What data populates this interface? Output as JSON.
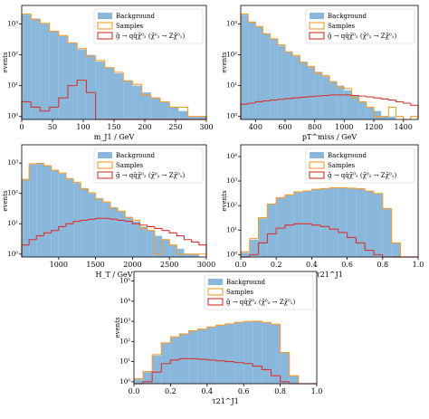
{
  "chart_data": [
    {
      "type": "histogram",
      "xlabel": "m_J1 / GeV",
      "ylabel": "events",
      "log_y": true,
      "legend": "upper right",
      "bins": [
        0,
        15,
        30,
        45,
        60,
        75,
        90,
        105,
        120,
        135,
        150,
        165,
        180,
        195,
        210,
        225,
        240,
        255,
        270,
        285,
        300
      ],
      "xlim": [
        0,
        300
      ],
      "xticks": [
        0,
        50,
        100,
        150,
        200,
        250,
        300
      ],
      "ylim": [
        0.8,
        4000
      ],
      "yticks": [
        {
          "value": 1,
          "label": "10⁰"
        },
        {
          "value": 10,
          "label": "10¹"
        },
        {
          "value": 100,
          "label": "10²"
        },
        {
          "value": 1000,
          "label": "10³"
        }
      ],
      "series": [
        {
          "name": "Background",
          "style": "fill",
          "color": "#8ab8dd",
          "values": [
            2000,
            1500,
            1000,
            600,
            400,
            250,
            150,
            100,
            60,
            40,
            25,
            15,
            10,
            6,
            4,
            3,
            2,
            1.5,
            1,
            1
          ]
        },
        {
          "name": "Samples",
          "style": "step",
          "color": "#f29b2c",
          "values": [
            2100,
            1400,
            1050,
            580,
            420,
            240,
            160,
            90,
            65,
            38,
            27,
            14,
            11,
            5,
            4,
            3,
            2,
            2,
            1,
            1
          ]
        },
        {
          "name": "g̃ → qq̄χ̃⁰₂ (χ̃⁰₂ → Zχ̃⁰₁)",
          "style": "step",
          "color": "#d9322b",
          "values": [
            3,
            2,
            1.5,
            2,
            4,
            10,
            15,
            6,
            0,
            0,
            0,
            0,
            0,
            0,
            0,
            0,
            0,
            0,
            0,
            0
          ]
        }
      ]
    },
    {
      "type": "histogram",
      "xlabel": "pT^miss / GeV",
      "ylabel": "events",
      "log_y": true,
      "legend": "upper right",
      "bins": [
        300,
        350,
        400,
        450,
        500,
        550,
        600,
        650,
        700,
        750,
        800,
        850,
        900,
        950,
        1000,
        1050,
        1100,
        1150,
        1200,
        1250,
        1300,
        1350,
        1400,
        1450,
        1500
      ],
      "xlim": [
        300,
        1500
      ],
      "xticks": [
        400,
        600,
        800,
        1000,
        1200,
        1400
      ],
      "ylim": [
        0.8,
        4000
      ],
      "yticks": [
        {
          "value": 1,
          "label": "10⁰"
        },
        {
          "value": 10,
          "label": "10¹"
        },
        {
          "value": 100,
          "label": "10²"
        },
        {
          "value": 1000,
          "label": "10³"
        }
      ],
      "series": [
        {
          "name": "Background",
          "style": "fill",
          "color": "#8ab8dd",
          "values": [
            2000,
            1200,
            800,
            500,
            320,
            200,
            130,
            90,
            60,
            40,
            28,
            20,
            14,
            10,
            7,
            5,
            3,
            2,
            1.5,
            1,
            1,
            0,
            0,
            0
          ]
        },
        {
          "name": "Samples",
          "style": "step",
          "color": "#f29b2c",
          "values": [
            2100,
            1150,
            820,
            480,
            330,
            210,
            120,
            95,
            55,
            42,
            26,
            21,
            13,
            9,
            8,
            4,
            3,
            2,
            1,
            1,
            2,
            1,
            0,
            1
          ]
        },
        {
          "name": "g̃ → qq̄χ̃⁰₂ (χ̃⁰₂ → Zχ̃⁰₁)",
          "style": "step",
          "color": "#d9322b",
          "values": [
            2.5,
            2.7,
            3,
            3.2,
            3.4,
            3.6,
            3.8,
            4,
            4.2,
            4.4,
            4.6,
            4.8,
            5,
            5,
            5,
            4.8,
            4.6,
            4.3,
            4,
            3.7,
            3.4,
            3,
            2.7,
            2.3
          ]
        }
      ]
    },
    {
      "type": "histogram",
      "xlabel": "H_T / GeV",
      "ylabel": "events",
      "log_y": true,
      "legend": "upper right",
      "bins": [
        500,
        600,
        700,
        800,
        900,
        1000,
        1100,
        1200,
        1300,
        1400,
        1500,
        1600,
        1700,
        1800,
        1900,
        2000,
        2100,
        2200,
        2300,
        2400,
        2500,
        2600,
        2700,
        2800,
        2900,
        3000
      ],
      "xlim": [
        500,
        3000
      ],
      "xticks": [
        1000,
        1500,
        2000,
        2500,
        3000
      ],
      "ylim": [
        0.8,
        4000
      ],
      "yticks": [
        {
          "value": 1,
          "label": "10⁰"
        },
        {
          "value": 10,
          "label": "10¹"
        },
        {
          "value": 100,
          "label": "10²"
        },
        {
          "value": 1000,
          "label": "10³"
        }
      ],
      "series": [
        {
          "name": "Background",
          "style": "fill",
          "color": "#8ab8dd",
          "values": [
            300,
            900,
            1000,
            800,
            600,
            450,
            320,
            220,
            150,
            100,
            70,
            50,
            35,
            25,
            17,
            12,
            8,
            6,
            4,
            3,
            2,
            1.5,
            1,
            1,
            0
          ]
        },
        {
          "name": "Samples",
          "style": "step",
          "color": "#f29b2c",
          "values": [
            280,
            950,
            980,
            820,
            580,
            470,
            300,
            230,
            140,
            105,
            65,
            52,
            33,
            26,
            16,
            13,
            7,
            6,
            1,
            3,
            2,
            1,
            1,
            1,
            1
          ]
        },
        {
          "name": "g̃ → qq̄χ̃⁰₂ (χ̃⁰₂ → Zχ̃⁰₁)",
          "style": "step",
          "color": "#d9322b",
          "values": [
            2,
            3,
            4,
            5,
            6,
            8,
            10,
            12,
            13,
            14,
            15,
            15,
            14,
            13,
            12,
            10,
            9,
            8,
            7,
            6,
            5,
            4,
            3,
            2.5,
            2
          ]
        }
      ]
    },
    {
      "type": "histogram",
      "xlabel": "τ21^J1",
      "ylabel": "events",
      "log_y": true,
      "legend": "upper right",
      "bins": [
        0,
        0.05,
        0.1,
        0.15,
        0.2,
        0.25,
        0.3,
        0.35,
        0.4,
        0.45,
        0.5,
        0.55,
        0.6,
        0.65,
        0.7,
        0.75,
        0.8,
        0.85,
        0.9,
        0.95,
        1
      ],
      "xlim": [
        0,
        1
      ],
      "xticks": [
        {
          "value": 0,
          "label": "0.0"
        },
        0.2,
        0.4,
        0.6,
        0.8,
        {
          "value": 1,
          "label": "1.0"
        }
      ],
      "ylim": [
        0.8,
        30000
      ],
      "yticks": [
        {
          "value": 1,
          "label": "10⁰"
        },
        {
          "value": 10,
          "label": "10¹"
        },
        {
          "value": 100,
          "label": "10²"
        },
        {
          "value": 1000,
          "label": "10³"
        },
        {
          "value": 10000,
          "label": "10⁴"
        }
      ],
      "series": [
        {
          "name": "Background",
          "style": "fill",
          "color": "#8ab8dd",
          "values": [
            1.2,
            4,
            30,
            120,
            200,
            280,
            350,
            400,
            450,
            500,
            520,
            540,
            520,
            480,
            400,
            300,
            80,
            3,
            0,
            0
          ]
        },
        {
          "name": "Samples",
          "style": "step",
          "color": "#f29b2c",
          "values": [
            1.3,
            4.5,
            32,
            115,
            210,
            270,
            360,
            390,
            460,
            490,
            530,
            530,
            510,
            490,
            390,
            310,
            75,
            3,
            0,
            0
          ]
        },
        {
          "name": "g̃ → qq̄χ̃⁰₂ (χ̃⁰₂ → Zχ̃⁰₁)",
          "style": "step",
          "color": "#d9322b",
          "values": [
            0,
            1,
            3,
            7,
            12,
            16,
            18,
            18,
            16,
            14,
            11,
            8,
            5,
            3,
            1.5,
            1,
            0,
            0,
            0,
            0
          ]
        }
      ]
    },
    {
      "type": "histogram",
      "xlabel": "τ21^J1",
      "ylabel": "events",
      "log_y": true,
      "legend": "upper right",
      "bins": [
        0,
        0.05,
        0.1,
        0.15,
        0.2,
        0.25,
        0.3,
        0.35,
        0.4,
        0.45,
        0.5,
        0.55,
        0.6,
        0.65,
        0.7,
        0.75,
        0.8,
        0.85,
        0.9,
        0.95,
        1
      ],
      "xlim": [
        0,
        1
      ],
      "xticks": [
        {
          "value": 0,
          "label": "0.0"
        },
        0.2,
        0.4,
        0.6,
        0.8,
        {
          "value": 1,
          "label": "1.0"
        }
      ],
      "ylim": [
        0.8,
        300000
      ],
      "yticks": [
        {
          "value": 1,
          "label": "10⁰"
        },
        {
          "value": 10,
          "label": "10¹"
        },
        {
          "value": 100,
          "label": "10²"
        },
        {
          "value": 1000,
          "label": "10³"
        },
        {
          "value": 10000,
          "label": "10⁴"
        },
        {
          "value": 100000,
          "label": "10⁵"
        }
      ],
      "series": [
        {
          "name": "Background",
          "style": "fill",
          "color": "#8ab8dd",
          "values": [
            1.3,
            3,
            20,
            80,
            160,
            250,
            330,
            420,
            520,
            640,
            760,
            880,
            1000,
            1000,
            900,
            700,
            30,
            2,
            0,
            0
          ]
        },
        {
          "name": "Samples",
          "style": "step",
          "color": "#f29b2c",
          "values": [
            1.4,
            3.2,
            22,
            85,
            170,
            240,
            340,
            410,
            530,
            650,
            750,
            900,
            980,
            1020,
            880,
            720,
            28,
            2,
            0,
            0
          ]
        },
        {
          "name": "g̃ → qq̄χ̃⁰₂ (χ̃⁰₂ → Zχ̃⁰₁)",
          "style": "step",
          "color": "#d9322b",
          "values": [
            0,
            1,
            3,
            8,
            12,
            14,
            14,
            13,
            12,
            11,
            10,
            9,
            8,
            6,
            4,
            2,
            1,
            0,
            0,
            0
          ]
        }
      ]
    }
  ]
}
